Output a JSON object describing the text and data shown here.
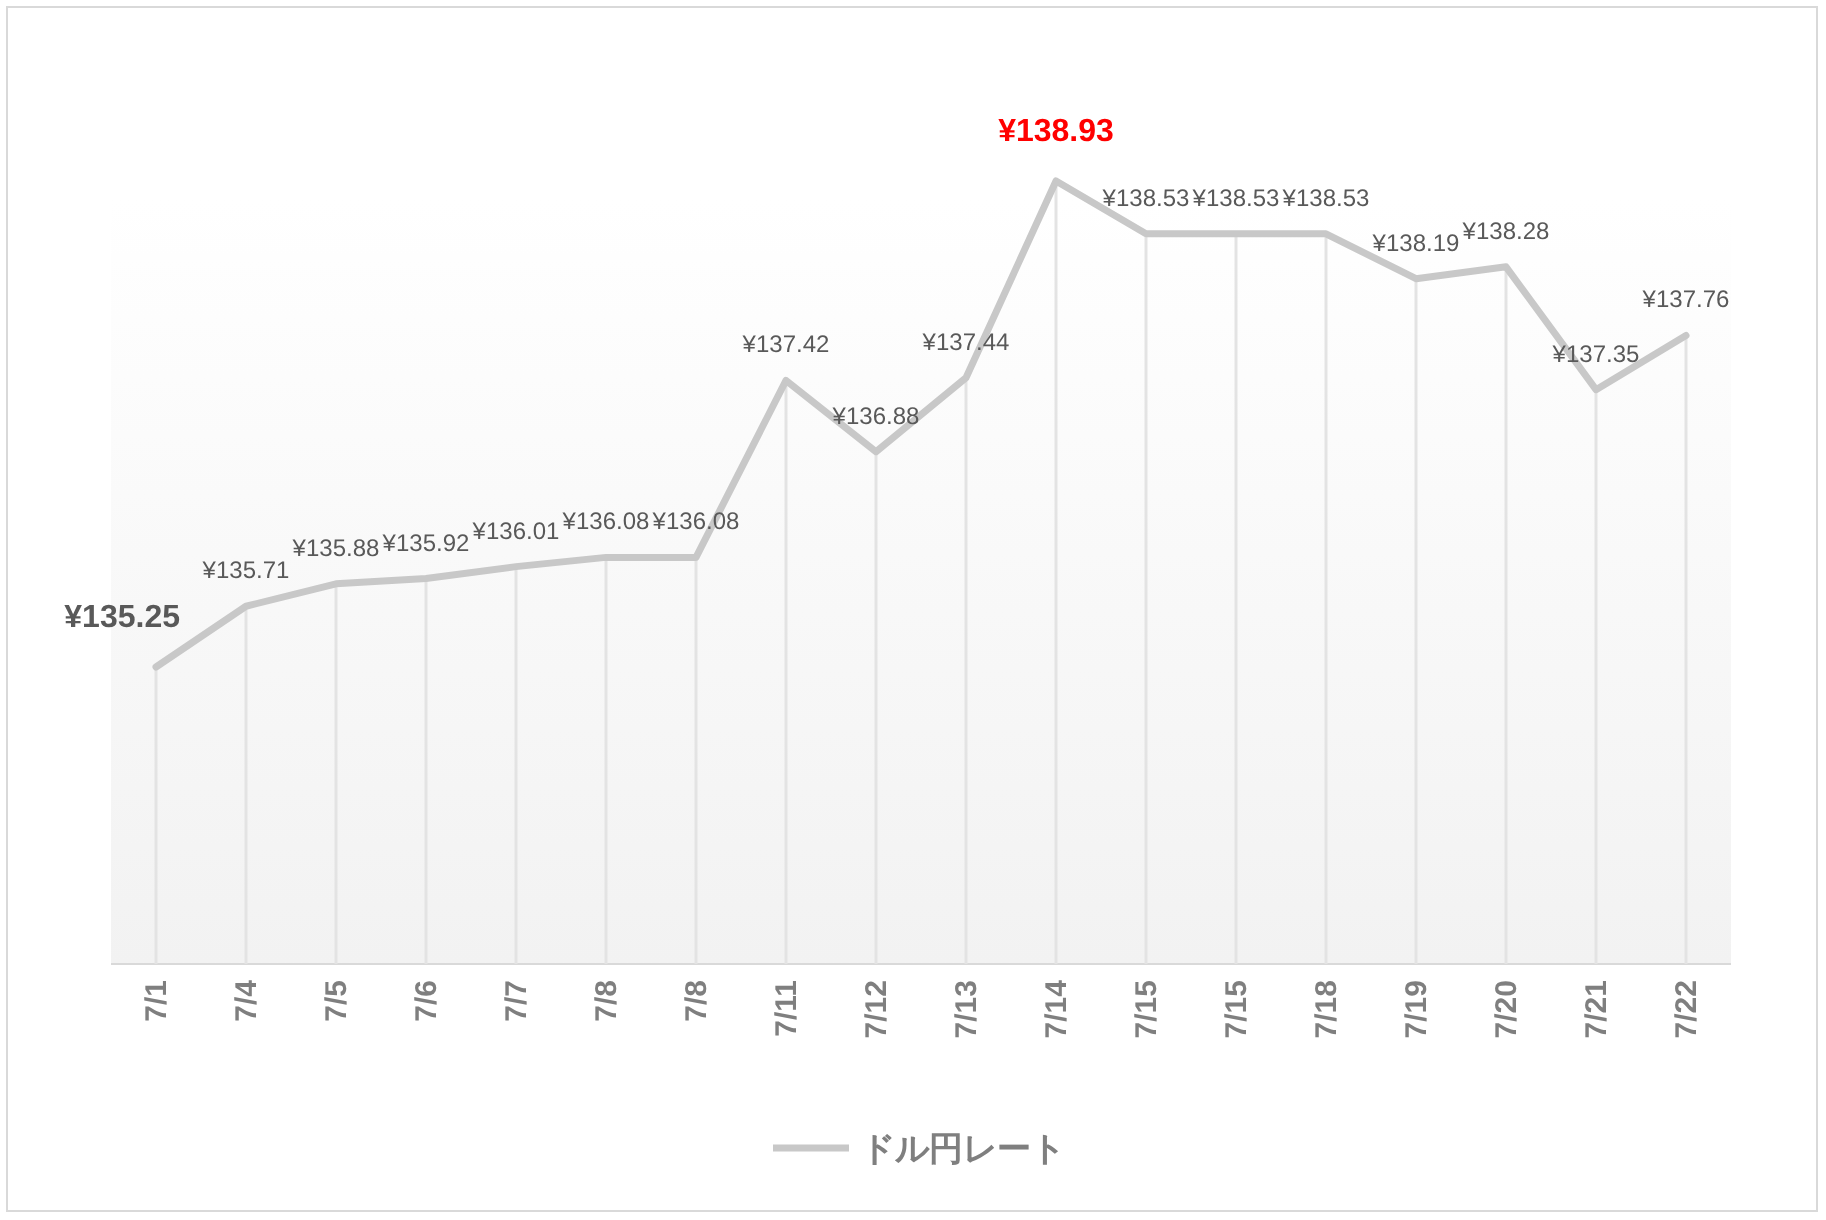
{
  "chart_data": {
    "type": "line",
    "categories": [
      "7/1",
      "7/4",
      "7/5",
      "7/6",
      "7/7",
      "7/8",
      "7/8",
      "7/11",
      "7/12",
      "7/13",
      "7/14",
      "7/15",
      "7/15",
      "7/18",
      "7/19",
      "7/20",
      "7/21",
      "7/22"
    ],
    "series": [
      {
        "name": "ドル円レート",
        "color": "#c8c8c8",
        "values": [
          135.25,
          135.71,
          135.88,
          135.92,
          136.01,
          136.08,
          136.08,
          137.42,
          136.88,
          137.44,
          138.93,
          138.53,
          138.53,
          138.53,
          138.19,
          138.28,
          137.35,
          137.76
        ],
        "value_labels": [
          "¥135.25",
          "¥135.71",
          "¥135.88",
          "¥135.92",
          "¥136.01",
          "¥136.08",
          "¥136.08",
          "¥137.42",
          "¥136.88",
          "¥137.44",
          "¥138.93",
          "¥138.53",
          "¥138.53",
          "¥138.53",
          "¥138.19",
          "¥138.28",
          "¥137.35",
          "¥137.76"
        ]
      }
    ],
    "tick_labels": "x",
    "grid": "x",
    "legend": "bottom",
    "marker": "none",
    "line_style": "solid"
  }
}
